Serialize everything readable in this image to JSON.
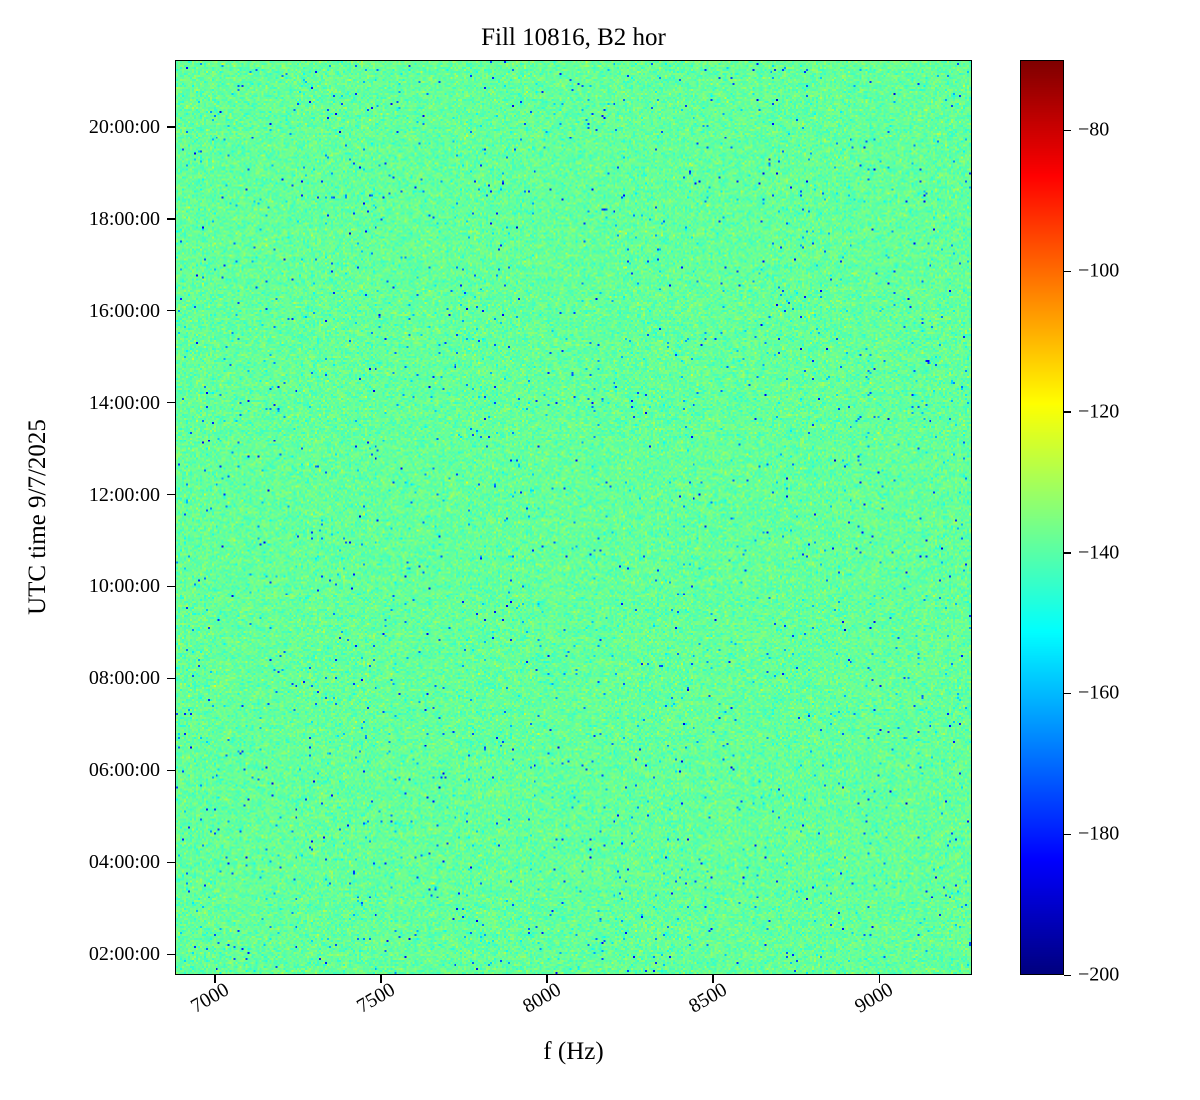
{
  "title": "Fill 10816, B2 hor",
  "xlabel": "f (Hz)",
  "ylabel": "UTC time 9/7/2025",
  "chart_data": {
    "type": "heatmap",
    "title": "Fill 10816, B2 hor",
    "xlabel": "f (Hz)",
    "ylabel": "UTC time 9/7/2025",
    "colormap": "jet",
    "xlim_hz": [
      6880,
      9280
    ],
    "x_ticks_hz": [
      7000,
      7500,
      8000,
      8500,
      9000
    ],
    "x_tick_rotation_deg": 30,
    "ylim_minutes": [
      93,
      1287
    ],
    "y_ticks": [
      {
        "label": "02:00:00",
        "minutes": 120
      },
      {
        "label": "04:00:00",
        "minutes": 240
      },
      {
        "label": "06:00:00",
        "minutes": 360
      },
      {
        "label": "08:00:00",
        "minutes": 480
      },
      {
        "label": "10:00:00",
        "minutes": 600
      },
      {
        "label": "12:00:00",
        "minutes": 720
      },
      {
        "label": "14:00:00",
        "minutes": 840
      },
      {
        "label": "16:00:00",
        "minutes": 960
      },
      {
        "label": "18:00:00",
        "minutes": 1080
      },
      {
        "label": "20:00:00",
        "minutes": 1200
      }
    ],
    "colorbar": {
      "vmin_db": -200,
      "vmax_db": -70,
      "ticks_db": [
        -80,
        -100,
        -120,
        -140,
        -160,
        -180,
        -200
      ],
      "minus_sign": "−"
    },
    "values_description": "broadband noise floor, approximately uniform over the whole time-frequency plane",
    "noise_model": {
      "mean_db": -138.5,
      "std_db": 3.2,
      "low_outlier_prob": 0.013,
      "low_outlier_extra_db": [
        8,
        45
      ],
      "high_outlier_prob": 0.01,
      "high_outlier_extra_db": [
        3,
        9
      ]
    }
  }
}
